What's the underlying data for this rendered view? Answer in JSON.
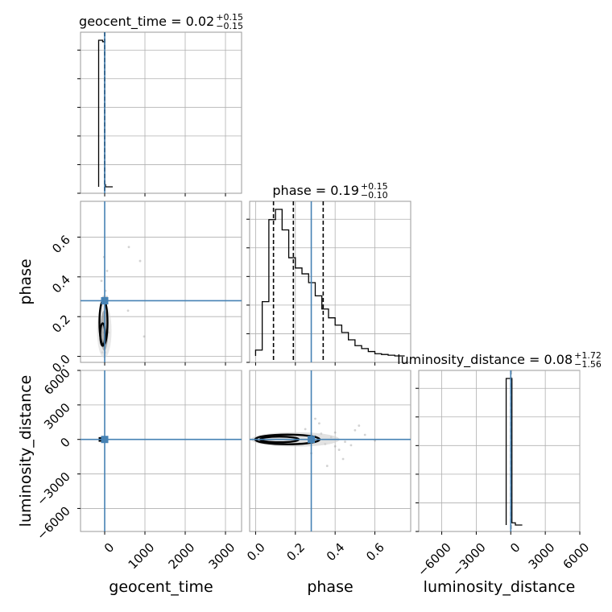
{
  "chart_data": {
    "type": "corner",
    "parameters": [
      "geocent_time",
      "phase",
      "luminosity_distance"
    ],
    "truths": {
      "geocent_time": 0.02,
      "phase": 0.28,
      "luminosity_distance": 0.0
    },
    "axes": {
      "geocent_time": {
        "range": [
          -600,
          3400
        ],
        "ticks": [
          0,
          1000,
          2000,
          3000
        ],
        "tick_labels": [
          "0",
          "1000",
          "2000",
          "3000"
        ],
        "label": "geocent_time"
      },
      "phase": {
        "range": [
          -0.03,
          0.78
        ],
        "ticks": [
          0.0,
          0.2,
          0.4,
          0.6
        ],
        "tick_labels": [
          "0.0",
          "0.2",
          "0.4",
          "0.6"
        ],
        "label": "phase"
      },
      "luminosity_distance": {
        "range": [
          -8000,
          6000
        ],
        "ticks": [
          -6000,
          -3000,
          0,
          3000,
          6000
        ],
        "tick_labels": [
          "−6000",
          "−3000",
          "0",
          "3000",
          "6000"
        ],
        "label": "luminosity_distance"
      }
    },
    "titles": {
      "geocent_time": {
        "main": "geocent_time = 0.02",
        "sup": "+0.15",
        "sub": "−0.15"
      },
      "phase": {
        "main": "phase = 0.19",
        "sup": "+0.15",
        "sub": "−0.10"
      },
      "luminosity_distance": {
        "main": "luminosity_distance = 0.08",
        "sup": "+1.72",
        "sub": "−1.56"
      }
    },
    "histograms": {
      "geocent_time": {
        "edges": [
          -150,
          -50,
          0,
          20,
          200
        ],
        "counts": [
          1.0,
          0.99,
          0.015,
          0.0
        ],
        "quantiles": [
          -0.13,
          0.02,
          0.17
        ]
      },
      "phase": {
        "edges": [
          0.0,
          0.0167,
          0.0333,
          0.05,
          0.0667,
          0.0833,
          0.1,
          0.1167,
          0.1333,
          0.15,
          0.1667,
          0.1833,
          0.2,
          0.2167,
          0.2333,
          0.25,
          0.2667,
          0.2833,
          0.3,
          0.3167,
          0.3333,
          0.35,
          0.3667,
          0.3833,
          0.4,
          0.4167,
          0.4333,
          0.45,
          0.4667,
          0.4833,
          0.5,
          0.5167,
          0.5333,
          0.55,
          0.5667,
          0.5833,
          0.6,
          0.6167,
          0.6333,
          0.65,
          0.6667,
          0.6833,
          0.7,
          0.7167,
          0.7333,
          0.75
        ],
        "counts": [
          0.04,
          0.04,
          0.37,
          0.37,
          0.93,
          0.93,
          1.0,
          1.0,
          0.86,
          0.86,
          0.67,
          0.67,
          0.6,
          0.6,
          0.56,
          0.56,
          0.5,
          0.5,
          0.41,
          0.41,
          0.32,
          0.32,
          0.26,
          0.26,
          0.21,
          0.21,
          0.16,
          0.16,
          0.11,
          0.11,
          0.07,
          0.07,
          0.05,
          0.05,
          0.03,
          0.03,
          0.015,
          0.015,
          0.01,
          0.01,
          0.005,
          0.005,
          0.0,
          0.0,
          0.0
        ],
        "quantiles": [
          0.09,
          0.19,
          0.34
        ]
      },
      "luminosity_distance": {
        "edges": [
          -400,
          -100,
          0,
          100,
          400,
          1000
        ],
        "counts": [
          1.0,
          1.0,
          1.0,
          0.015,
          0.0
        ],
        "quantiles": [
          -1.48,
          0.08,
          1.8
        ]
      }
    },
    "scatter_2d": [
      {
        "x": "geocent_time",
        "y": "phase",
        "points": [
          [
            -10,
            0.05
          ],
          [
            5,
            0.08
          ],
          [
            -20,
            0.12
          ],
          [
            30,
            0.15
          ],
          [
            -5,
            0.2
          ],
          [
            10,
            0.25
          ],
          [
            -30,
            0.3
          ],
          [
            20,
            0.33
          ],
          [
            -15,
            0.5
          ],
          [
            60,
            0.43
          ],
          [
            -40,
            0.06
          ],
          [
            15,
            0.02
          ],
          [
            600,
            0.55
          ],
          [
            880,
            0.48
          ],
          [
            980,
            0.1
          ],
          [
            580,
            0.23
          ],
          [
            -80,
            0.38
          ],
          [
            100,
            0.12
          ],
          [
            -60,
            0.02
          ],
          [
            50,
            0.3
          ]
        ]
      },
      {
        "x": "phase",
        "y": "luminosity_distance",
        "points": [
          [
            0.3,
            300
          ],
          [
            0.35,
            -400
          ],
          [
            0.4,
            600
          ],
          [
            0.45,
            -200
          ],
          [
            0.5,
            800
          ],
          [
            0.28,
            -1200
          ],
          [
            0.32,
            1400
          ],
          [
            0.42,
            -900
          ],
          [
            0.38,
            200
          ],
          [
            0.48,
            -500
          ],
          [
            0.55,
            400
          ],
          [
            0.25,
            900
          ],
          [
            0.22,
            -300
          ],
          [
            0.6,
            -100
          ],
          [
            0.36,
            -2300
          ],
          [
            0.44,
            -1700
          ],
          [
            0.52,
            1200
          ],
          [
            0.3,
            1800
          ],
          [
            0.4,
            -600
          ],
          [
            0.33,
            500
          ]
        ]
      },
      {
        "x": "geocent_time",
        "y": "luminosity_distance",
        "points": [
          [
            -20,
            100
          ],
          [
            10,
            -50
          ],
          [
            -5,
            40
          ],
          [
            5,
            20
          ],
          [
            30,
            -20
          ]
        ]
      }
    ]
  }
}
